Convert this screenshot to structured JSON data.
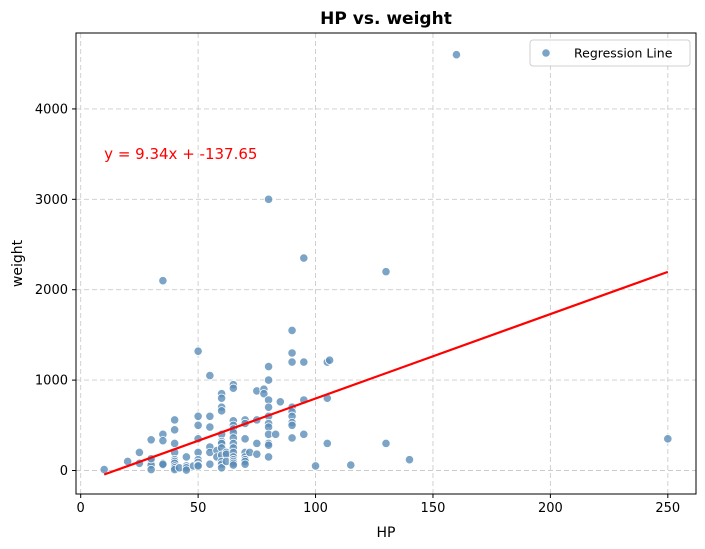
{
  "chart_data": {
    "type": "scatter",
    "title": "HP vs. weight",
    "xlabel": "HP",
    "ylabel": "weight",
    "xlim": [
      -2,
      262
    ],
    "ylim": [
      -260,
      4840
    ],
    "xticks": [
      0,
      50,
      100,
      150,
      200,
      250
    ],
    "yticks": [
      0,
      1000,
      2000,
      3000,
      4000
    ],
    "grid": true,
    "legend": {
      "position": "top-right",
      "entries": [
        "Regression Line"
      ]
    },
    "annotation": {
      "text": "y = 9.34x + -137.65",
      "color": "#ff0000",
      "x": 10,
      "y": 3500
    },
    "colors": {
      "points": "#5b8db8",
      "line": "#ff0000",
      "grid": "#cccccc"
    },
    "regression": {
      "slope": 9.34,
      "intercept": -137.65,
      "x_range": [
        10,
        250
      ]
    },
    "series": [
      {
        "x": [
          10,
          20,
          25,
          25,
          30,
          30,
          30,
          30,
          30,
          35,
          35,
          35,
          35,
          35,
          35,
          40,
          40,
          40,
          40,
          40,
          40,
          40,
          40,
          40,
          40,
          40,
          42,
          45,
          45,
          45,
          45,
          48,
          50,
          50,
          50,
          50,
          50,
          50,
          50,
          50,
          50,
          55,
          55,
          55,
          55,
          55,
          55,
          58,
          58,
          60,
          60,
          60,
          60,
          60,
          60,
          60,
          60,
          60,
          60,
          60,
          60,
          62,
          62,
          62,
          65,
          65,
          65,
          65,
          65,
          65,
          65,
          65,
          65,
          65,
          65,
          65,
          65,
          65,
          65,
          70,
          70,
          70,
          70,
          70,
          70,
          70,
          70,
          72,
          75,
          75,
          75,
          75,
          78,
          78,
          80,
          80,
          80,
          80,
          80,
          80,
          80,
          80,
          80,
          80,
          80,
          80,
          83,
          85,
          90,
          90,
          90,
          90,
          90,
          90,
          90,
          90,
          90,
          95,
          95,
          95,
          95,
          100,
          105,
          105,
          105,
          106,
          115,
          130,
          130,
          140,
          160,
          250
        ],
        "y": [
          10,
          100,
          200,
          80,
          340,
          100,
          60,
          10,
          130,
          2100,
          400,
          330,
          80,
          60,
          70,
          560,
          450,
          300,
          200,
          120,
          100,
          100,
          80,
          50,
          30,
          10,
          30,
          150,
          50,
          30,
          5,
          50,
          1320,
          600,
          500,
          350,
          200,
          120,
          90,
          60,
          50,
          1050,
          600,
          480,
          260,
          200,
          70,
          220,
          150,
          850,
          800,
          700,
          660,
          400,
          320,
          300,
          250,
          170,
          100,
          70,
          30,
          200,
          180,
          100,
          950,
          910,
          550,
          500,
          460,
          420,
          360,
          300,
          250,
          200,
          150,
          120,
          100,
          80,
          60,
          560,
          520,
          350,
          200,
          150,
          120,
          100,
          70,
          200,
          880,
          560,
          300,
          180,
          900,
          850,
          3000,
          1150,
          1000,
          780,
          700,
          600,
          520,
          480,
          300,
          280,
          150,
          400,
          400,
          760,
          1550,
          1300,
          1200,
          700,
          650,
          600,
          530,
          500,
          360,
          2350,
          1200,
          780,
          400,
          50,
          1200,
          800,
          300,
          1220,
          60,
          2200,
          300,
          120,
          4600,
          350
        ]
      }
    ]
  }
}
